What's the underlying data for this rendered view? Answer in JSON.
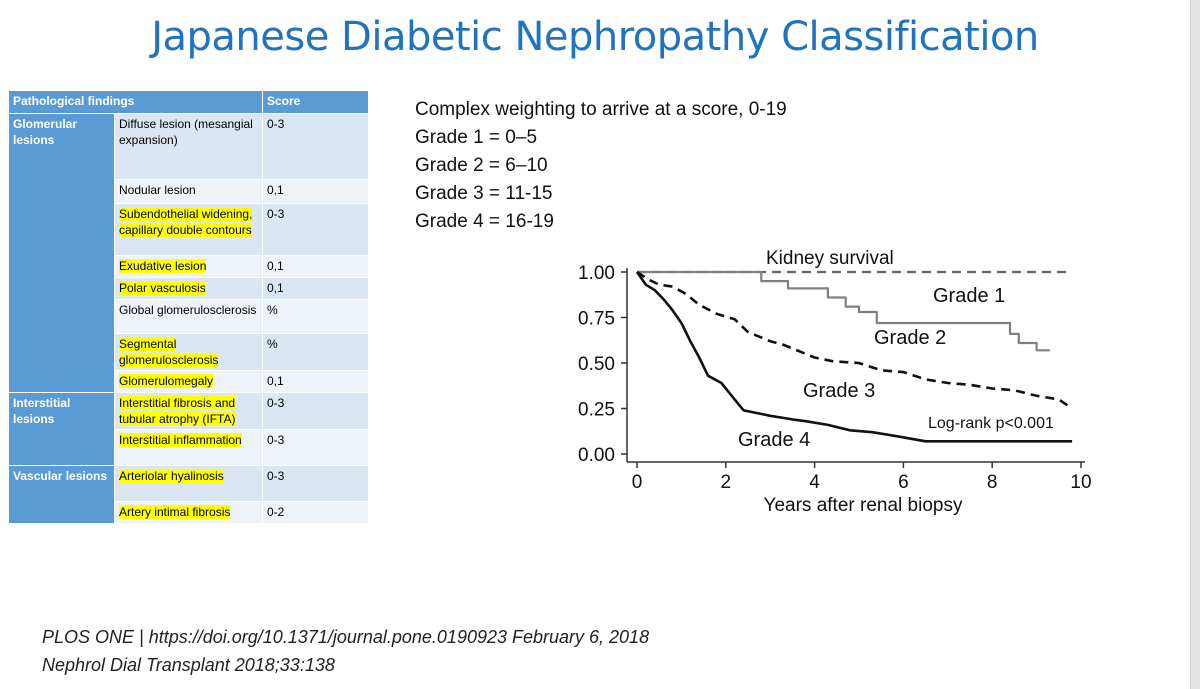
{
  "slide": {
    "title": "Japanese Diabetic Nephropathy Classification"
  },
  "table": {
    "headers": [
      "Pathological findings",
      "Score"
    ],
    "groups": [
      {
        "category": "Glomerular lesions",
        "rows": [
          {
            "finding": "Diffuse lesion (mesangial expansion)",
            "score": "0-3",
            "highlight": false
          },
          {
            "finding": "Nodular lesion",
            "score": "0,1",
            "highlight": false
          },
          {
            "finding": "Subendothelial widening, capillary double contours",
            "score": "0-3",
            "highlight": true
          },
          {
            "finding": "Exudative lesion",
            "score": "0,1",
            "highlight": true
          },
          {
            "finding": "Polar vasculosis",
            "score": "0,1",
            "highlight": true
          },
          {
            "finding": "Global glomerulosclerosis",
            "score": "%",
            "highlight": false
          },
          {
            "finding": "Segmental glomerulosclerosis",
            "score": "%",
            "highlight": true
          },
          {
            "finding": "Glomerulomegaly",
            "score": "0,1",
            "highlight": true
          }
        ]
      },
      {
        "category": "Interstitial lesions",
        "rows": [
          {
            "finding": "Interstitial fibrosis and tubular atrophy (IFTA)",
            "score": "0-3",
            "highlight": true
          },
          {
            "finding": "Interstitial inflammation",
            "score": "0-3",
            "highlight": true
          }
        ]
      },
      {
        "category": "Vascular lesions",
        "rows": [
          {
            "finding": "Arteriolar hyalinosis",
            "score": "0-3",
            "highlight": true
          },
          {
            "finding": "Artery intimal fibrosis",
            "score": "0-2",
            "highlight": true
          }
        ]
      }
    ],
    "colors": {
      "header": "#5b9bd5",
      "band_dark": "#dae6f3",
      "band_light": "#eef3fa",
      "highlight": "#ffff00"
    }
  },
  "grading": {
    "lines": [
      "Complex weighting to arrive at a score, 0-19",
      "Grade 1 = 0–5",
      "Grade 2 = 6–10",
      "Grade 3 = 11-15",
      "Grade 4 = 16-19"
    ]
  },
  "chart_data": {
    "type": "line",
    "title": "Kidney survival",
    "xlabel": "Years after renal biopsy",
    "ylabel": "",
    "xlim": [
      0,
      10
    ],
    "ylim": [
      0,
      1
    ],
    "xticks": [
      0,
      2,
      4,
      6,
      8,
      10
    ],
    "yticks": [
      0.0,
      0.25,
      0.5,
      0.75,
      1.0
    ],
    "ytick_labels": [
      "0.00",
      "0.25",
      "0.50",
      "0.75",
      "1.00"
    ],
    "annotation": "Log-rank p<0.001",
    "series": [
      {
        "name": "Grade 1",
        "style": "dashed",
        "color": "#666666",
        "x": [
          0,
          9.8
        ],
        "y": [
          1.0,
          1.0
        ]
      },
      {
        "name": "Grade 2",
        "style": "solid",
        "color": "#808080",
        "x": [
          0,
          2.8,
          2.8,
          3.4,
          3.4,
          4.3,
          4.3,
          4.7,
          4.7,
          5.0,
          5.0,
          5.4,
          5.4,
          8.4,
          8.4,
          8.6,
          8.6,
          9.0,
          9.0,
          9.3
        ],
        "y": [
          1.0,
          1.0,
          0.95,
          0.95,
          0.91,
          0.91,
          0.86,
          0.86,
          0.81,
          0.81,
          0.78,
          0.78,
          0.72,
          0.72,
          0.66,
          0.66,
          0.61,
          0.61,
          0.57,
          0.57
        ]
      },
      {
        "name": "Grade 3",
        "style": "dashed",
        "color": "#111111",
        "x": [
          0,
          0.25,
          0.5,
          0.8,
          1.1,
          1.4,
          1.8,
          2.2,
          2.5,
          3.0,
          3.3,
          3.7,
          4.0,
          4.4,
          5.0,
          5.5,
          6.0,
          6.5,
          7.0,
          7.5,
          8.0,
          8.5,
          9.0,
          9.5,
          9.8
        ],
        "y": [
          1.0,
          0.96,
          0.93,
          0.92,
          0.88,
          0.82,
          0.77,
          0.74,
          0.67,
          0.62,
          0.6,
          0.56,
          0.53,
          0.51,
          0.5,
          0.46,
          0.45,
          0.41,
          0.39,
          0.38,
          0.36,
          0.35,
          0.32,
          0.3,
          0.25
        ]
      },
      {
        "name": "Grade 4",
        "style": "solid",
        "color": "#111111",
        "x": [
          0,
          0.2,
          0.4,
          0.6,
          0.8,
          1.0,
          1.2,
          1.4,
          1.6,
          1.9,
          2.1,
          2.3,
          2.4,
          2.6,
          3.0,
          3.5,
          3.8,
          4.3,
          4.8,
          5.3,
          5.8,
          6.5,
          7.5,
          8.5,
          9.8
        ],
        "y": [
          1.0,
          0.93,
          0.9,
          0.85,
          0.79,
          0.72,
          0.62,
          0.53,
          0.43,
          0.39,
          0.33,
          0.27,
          0.24,
          0.23,
          0.21,
          0.19,
          0.18,
          0.16,
          0.13,
          0.12,
          0.1,
          0.07,
          0.07,
          0.07,
          0.07
        ]
      }
    ]
  },
  "citations": [
    "PLOS ONE | https://doi.org/10.1371/journal.pone.0190923 February 6, 2018",
    "Nephrol Dial Transplant 2018;33:138"
  ]
}
